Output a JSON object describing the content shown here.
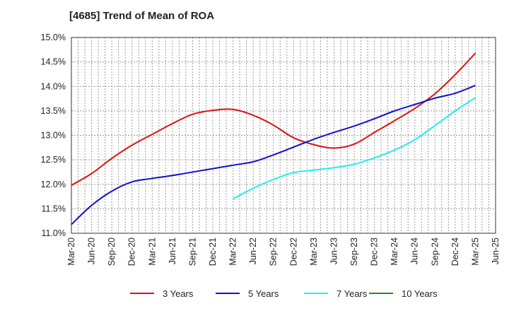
{
  "chart_data": {
    "type": "line",
    "title": "[4685]  Trend of Mean of ROA",
    "xlabel": "",
    "ylabel": "",
    "ylim": [
      11.0,
      15.0
    ],
    "y_ticks": [
      "15.0%",
      "14.5%",
      "14.0%",
      "13.5%",
      "13.0%",
      "12.5%",
      "12.0%",
      "11.5%",
      "11.0%"
    ],
    "y_tick_values": [
      15.0,
      14.5,
      14.0,
      13.5,
      13.0,
      12.5,
      12.0,
      11.5,
      11.0
    ],
    "categories": [
      "Mar-20",
      "Jun-20",
      "Sep-20",
      "Dec-20",
      "Mar-21",
      "Jun-21",
      "Sep-21",
      "Dec-21",
      "Mar-22",
      "Jun-22",
      "Sep-22",
      "Dec-22",
      "Mar-23",
      "Jun-23",
      "Sep-23",
      "Dec-23",
      "Mar-24",
      "Jun-24",
      "Sep-24",
      "Dec-24",
      "Mar-25",
      "Jun-25"
    ],
    "grid": true,
    "legend_position": "bottom",
    "series": [
      {
        "name": "3 Years",
        "color": "#dd1111",
        "values": [
          11.98,
          12.22,
          12.53,
          12.8,
          13.02,
          13.24,
          13.43,
          13.51,
          13.53,
          13.41,
          13.21,
          12.95,
          12.81,
          12.74,
          12.82,
          13.06,
          13.3,
          13.55,
          13.85,
          14.24,
          14.68,
          null
        ]
      },
      {
        "name": "5 Years",
        "color": "#1111cc",
        "values": [
          11.18,
          11.57,
          11.86,
          12.05,
          12.12,
          12.18,
          12.25,
          12.32,
          12.39,
          12.46,
          12.6,
          12.76,
          12.92,
          13.06,
          13.19,
          13.34,
          13.5,
          13.63,
          13.76,
          13.86,
          14.02,
          null
        ]
      },
      {
        "name": "7 Years",
        "color": "#22eeee",
        "values": [
          null,
          null,
          null,
          null,
          null,
          null,
          null,
          null,
          11.7,
          11.92,
          12.1,
          12.24,
          12.29,
          12.34,
          12.41,
          12.54,
          12.7,
          12.91,
          13.2,
          13.5,
          13.77,
          null
        ]
      },
      {
        "name": "10 Years",
        "color": "#228822",
        "values": [
          null,
          null,
          null,
          null,
          null,
          null,
          null,
          null,
          null,
          null,
          null,
          null,
          null,
          null,
          null,
          null,
          null,
          null,
          null,
          null,
          null,
          null
        ]
      }
    ]
  }
}
